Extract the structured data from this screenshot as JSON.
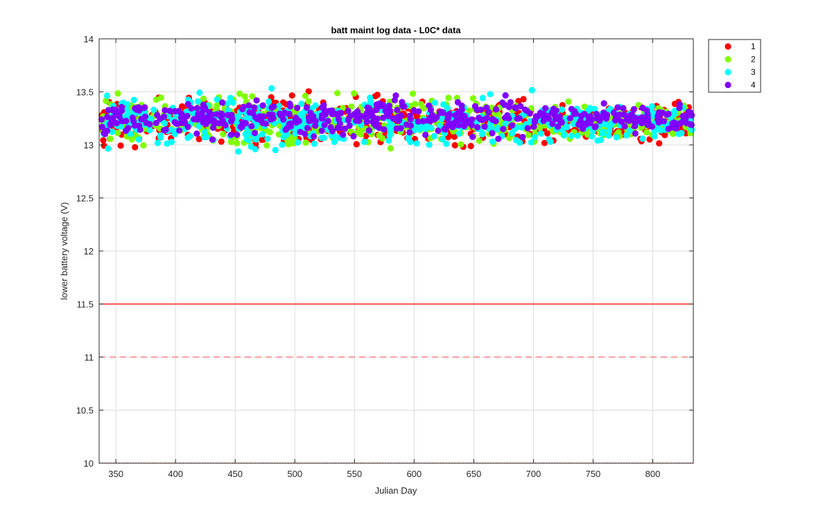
{
  "chart_data": {
    "type": "scatter",
    "title": "batt maint log data - L0C* data",
    "xlabel": "Julian Day",
    "ylabel": "lower battery voltage (V)",
    "xlim": [
      336,
      834
    ],
    "ylim": [
      10,
      14
    ],
    "xticks": [
      350,
      400,
      450,
      500,
      550,
      600,
      650,
      700,
      750,
      800
    ],
    "yticks": [
      10,
      10.5,
      11,
      11.5,
      12,
      12.5,
      13,
      13.5,
      14
    ],
    "grid": true,
    "legend_position": "outside-top-right",
    "reference_lines": [
      {
        "y": 11.5,
        "style": "solid",
        "color": "#ff0000"
      },
      {
        "y": 11.0,
        "style": "dashed",
        "color": "#ff6666"
      },
      {
        "y": 10.0,
        "style": "dotted",
        "color": "#cc0000"
      }
    ],
    "series": [
      {
        "name": "1",
        "color": "#ff0000",
        "band": {
          "y_center": 13.22,
          "y_spread": 0.28,
          "y_min": 12.77,
          "y_max": 13.7
        }
      },
      {
        "name": "2",
        "color": "#80ff00",
        "band": {
          "y_center": 13.22,
          "y_spread": 0.28,
          "y_min": 12.77,
          "y_max": 13.69
        }
      },
      {
        "name": "3",
        "color": "#00ffff",
        "band": {
          "y_center": 13.22,
          "y_spread": 0.28,
          "y_min": 12.7,
          "y_max": 13.69
        }
      },
      {
        "name": "4",
        "color": "#8000ff",
        "band": {
          "y_center": 13.25,
          "y_spread": 0.2,
          "y_min": 12.62,
          "y_max": 13.6
        }
      }
    ]
  },
  "legend": {
    "items": [
      {
        "label": "1",
        "color": "#ff0000"
      },
      {
        "label": "2",
        "color": "#80ff00"
      },
      {
        "label": "3",
        "color": "#00ffff"
      },
      {
        "label": "4",
        "color": "#8000ff"
      }
    ]
  }
}
